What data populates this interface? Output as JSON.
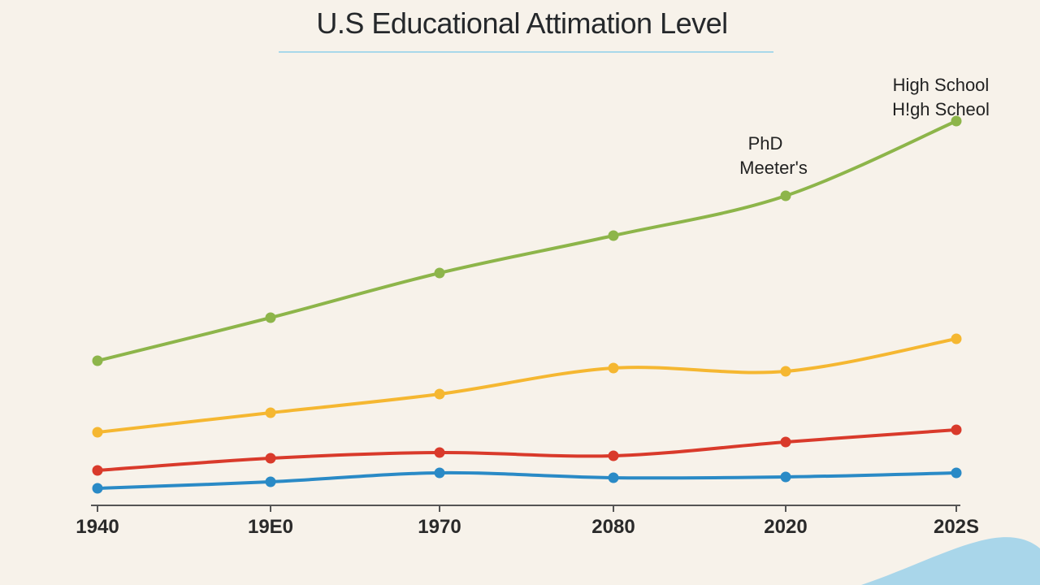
{
  "chart_data": {
    "type": "line",
    "title": "U.S Educational Attimation Level",
    "xlabel": "",
    "ylabel": "",
    "categories": [
      "1940",
      "19E0",
      "1970",
      "2080",
      "2020",
      "202S"
    ],
    "ylim": [
      0,
      100
    ],
    "y_axis_shown": false,
    "grid": false,
    "legend": "none",
    "series": [
      {
        "color": "#8db54a",
        "values": [
          35.6,
          46.2,
          57.2,
          66.4,
          76.2,
          94.6
        ]
      },
      {
        "color": "#f5b731",
        "values": [
          18.0,
          22.8,
          27.4,
          33.8,
          33.0,
          41.0
        ]
      },
      {
        "color": "#d93a2b",
        "values": [
          8.6,
          11.6,
          13.0,
          12.2,
          15.6,
          18.6
        ]
      },
      {
        "color": "#2a8ac6",
        "values": [
          4.2,
          5.8,
          8.0,
          6.8,
          7.0,
          8.0
        ]
      }
    ],
    "annotations": [
      "High School",
      "H!gh Scheol",
      "PhD",
      "Meeter's"
    ]
  },
  "colors": {
    "background": "#f7f2ea",
    "title_rule": "#a9d8ea",
    "corner_wave": "#a9d6ea"
  }
}
